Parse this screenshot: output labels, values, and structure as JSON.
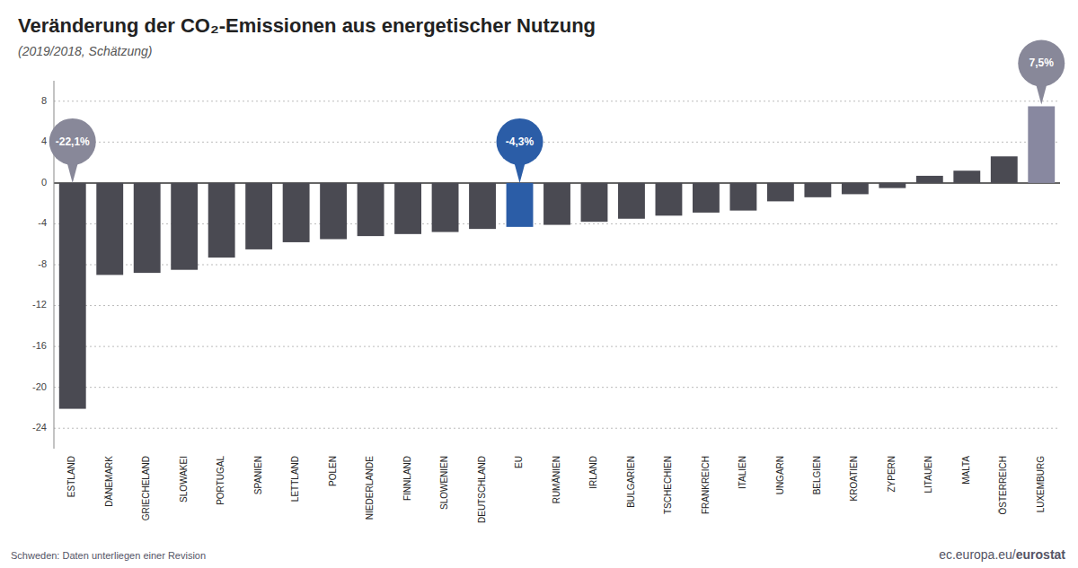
{
  "chart_data": {
    "type": "bar",
    "title": "Veränderung der CO₂-Emissionen aus energetischer Nutzung",
    "subtitle": "(2019/2018, Schätzung)",
    "categories": [
      "ESTLAND",
      "DÄNEMARK",
      "GRIECHELAND",
      "SLOWAKEI",
      "PORTUGAL",
      "SPANIEN",
      "LETTLAND",
      "POLEN",
      "NIEDERLANDE",
      "FINNLAND",
      "SLOWENIEN",
      "DEUTSCHLAND",
      "EU",
      "RUMÄNIEN",
      "IRLAND",
      "BULGARIEN",
      "TSCHECHIEN",
      "FRANKREICH",
      "ITALIEN",
      "UNGARN",
      "BELGIEN",
      "KROATIEN",
      "ZYPERN",
      "LITAUEN",
      "MALTA",
      "ÖSTERREICH",
      "LUXEMBURG"
    ],
    "values": [
      -22.1,
      -9.0,
      -8.8,
      -8.5,
      -7.3,
      -6.5,
      -5.8,
      -5.5,
      -5.2,
      -5.0,
      -4.8,
      -4.5,
      -4.3,
      -4.1,
      -3.8,
      -3.5,
      -3.2,
      -2.9,
      -2.7,
      -1.8,
      -1.4,
      -1.1,
      -0.5,
      0.7,
      1.2,
      2.6,
      7.5
    ],
    "colors": [
      "#4a4a52",
      "#4a4a52",
      "#4a4a52",
      "#4a4a52",
      "#4a4a52",
      "#4a4a52",
      "#4a4a52",
      "#4a4a52",
      "#4a4a52",
      "#4a4a52",
      "#4a4a52",
      "#4a4a52",
      "#2B5DA7",
      "#4a4a52",
      "#4a4a52",
      "#4a4a52",
      "#4a4a52",
      "#4a4a52",
      "#4a4a52",
      "#4a4a52",
      "#4a4a52",
      "#4a4a52",
      "#4a4a52",
      "#4a4a52",
      "#4a4a52",
      "#4a4a52",
      "#8888a0"
    ],
    "ylim": [
      -26,
      10
    ],
    "yticks": [
      -24,
      -20,
      -16,
      -12,
      -8,
      -4,
      0,
      4,
      8
    ],
    "grid": true,
    "annotations": [
      {
        "text": "-22,1%",
        "category": "ESTLAND",
        "color": "#888899"
      },
      {
        "text": "-4,3%",
        "category": "EU",
        "color": "#2B5DA7"
      },
      {
        "text": "7,5%",
        "category": "LUXEMBURG",
        "color": "#888899"
      },
      {
        "text": "Schweden: Daten unterliegen einer Revision"
      },
      {
        "text": "ec.europa.eu/"
      },
      {
        "text": "eurostat"
      }
    ]
  }
}
